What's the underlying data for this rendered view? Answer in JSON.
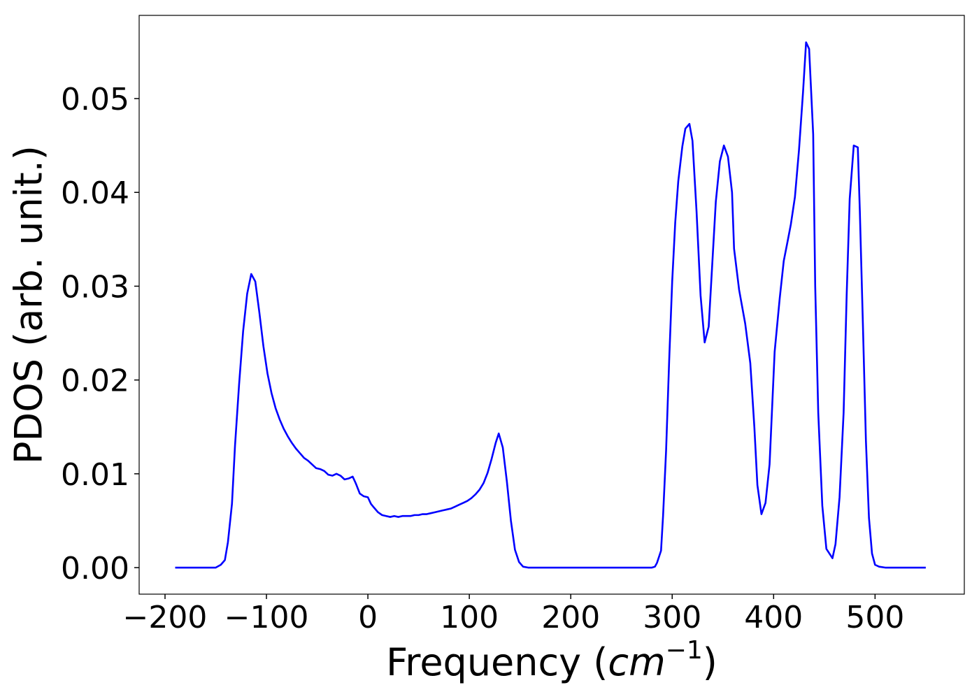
{
  "chart_data": {
    "type": "line",
    "ylabel": "PDOS (arb. unit.)",
    "xlabel": [
      "Frequency (",
      "cm",
      "−1",
      ")"
    ],
    "xlim": [
      -225.5,
      588
    ],
    "ylim": [
      -0.00283,
      0.05887
    ],
    "xticks": [
      {
        "value": -200,
        "label": "−200"
      },
      {
        "value": -100,
        "label": "−100"
      },
      0,
      100,
      200,
      300,
      400,
      500
    ],
    "yticks": [
      {
        "value": 0,
        "label": "0.00"
      },
      {
        "value": 0.01,
        "label": "0.01"
      },
      {
        "value": 0.02,
        "label": "0.02"
      },
      {
        "value": 0.03,
        "label": "0.03"
      },
      {
        "value": 0.04,
        "label": "0.04"
      },
      {
        "value": 0.05,
        "label": "0.05"
      }
    ],
    "grid": false,
    "series": [
      {
        "color": "#0000ff",
        "x": [
          -190,
          -150,
          -145,
          -141,
          -138,
          -134,
          -131,
          -127,
          -123,
          -119,
          -115,
          -111,
          -107,
          -103,
          -99,
          -95,
          -91,
          -87,
          -83,
          -79,
          -75,
          -71,
          -67,
          -63,
          -59,
          -55,
          -51,
          -47,
          -43,
          -39,
          -35,
          -31,
          -27,
          -23,
          -19,
          -15,
          -12,
          -8,
          -4,
          0,
          3,
          6,
          10,
          14,
          18,
          22,
          26,
          30,
          34,
          38,
          42,
          46,
          50,
          54,
          58,
          62,
          66,
          70,
          74,
          78,
          82,
          86,
          90,
          94,
          98,
          102,
          106,
          110,
          114,
          118,
          122,
          126,
          129,
          133,
          137,
          141,
          145,
          149,
          153,
          158,
          280,
          283,
          285,
          289,
          291,
          294,
          297,
          300,
          303,
          306,
          310,
          313,
          317,
          320,
          324,
          328,
          332,
          336,
          343,
          347,
          351,
          355,
          359,
          361,
          366,
          372,
          377,
          381,
          384,
          388,
          392,
          396,
          401,
          406,
          410,
          414,
          417,
          421,
          425,
          429,
          432,
          435,
          439,
          441,
          444,
          448,
          452,
          458,
          461,
          465,
          469,
          472,
          475,
          479,
          483,
          485,
          488,
          491,
          494,
          497,
          500,
          504,
          510,
          550
        ],
        "values": [
          0,
          0,
          0.0003,
          0.0008,
          0.0027,
          0.0068,
          0.013,
          0.0195,
          0.0252,
          0.0292,
          0.0313,
          0.0305,
          0.0272,
          0.0236,
          0.0207,
          0.0186,
          0.017,
          0.0158,
          0.0148,
          0.014,
          0.0133,
          0.0127,
          0.0122,
          0.0117,
          0.0114,
          0.011,
          0.0106,
          0.0105,
          0.0103,
          0.0099,
          0.0098,
          0.01,
          0.0098,
          0.0094,
          0.0095,
          0.0097,
          0.009,
          0.0079,
          0.0076,
          0.0075,
          0.0068,
          0.0064,
          0.0059,
          0.0056,
          0.0055,
          0.0054,
          0.0055,
          0.0054,
          0.0055,
          0.0055,
          0.0055,
          0.0056,
          0.0056,
          0.0057,
          0.0057,
          0.0058,
          0.0059,
          0.006,
          0.0061,
          0.0062,
          0.0063,
          0.0065,
          0.0067,
          0.0069,
          0.0071,
          0.0074,
          0.0078,
          0.0083,
          0.009,
          0.0101,
          0.0116,
          0.0133,
          0.0143,
          0.0128,
          0.0092,
          0.005,
          0.0019,
          0.0006,
          0.0001,
          0,
          0,
          0.0001,
          0.0005,
          0.0018,
          0.0055,
          0.0125,
          0.022,
          0.0305,
          0.0368,
          0.0412,
          0.0449,
          0.0468,
          0.0473,
          0.0455,
          0.038,
          0.029,
          0.024,
          0.0257,
          0.039,
          0.0433,
          0.045,
          0.0438,
          0.04,
          0.034,
          0.0296,
          0.026,
          0.0218,
          0.015,
          0.0088,
          0.0057,
          0.0069,
          0.011,
          0.023,
          0.0287,
          0.0327,
          0.0349,
          0.0366,
          0.0395,
          0.0445,
          0.0507,
          0.056,
          0.0553,
          0.0462,
          0.03,
          0.0165,
          0.0066,
          0.002,
          0.001,
          0.0025,
          0.0075,
          0.0165,
          0.029,
          0.0393,
          0.045,
          0.0448,
          0.038,
          0.026,
          0.0135,
          0.0053,
          0.0015,
          0.0003,
          0.0001,
          0,
          0
        ]
      }
    ]
  }
}
